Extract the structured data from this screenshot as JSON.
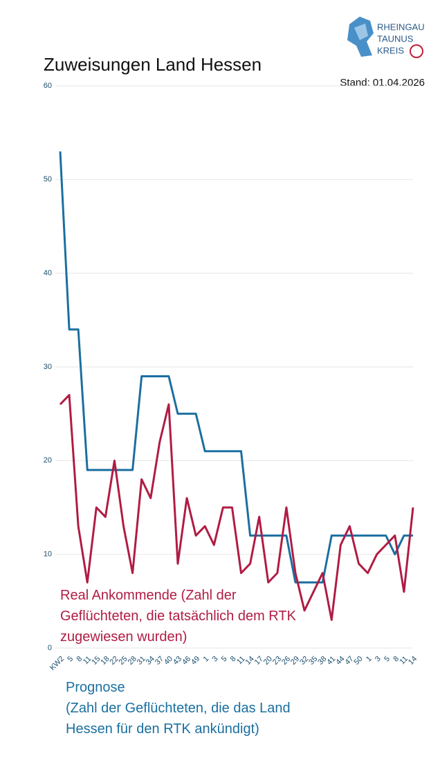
{
  "logo": {
    "lines": [
      "RHEINGAU",
      "TAUNUS",
      "KREIS"
    ]
  },
  "chart_data": {
    "type": "line",
    "title": "Zuweisungen Land Hessen",
    "subtitle": "Stand: 01.04.2026",
    "categories": [
      "KW2",
      "5",
      "8",
      "11",
      "15",
      "18",
      "22",
      "25",
      "28",
      "31",
      "34",
      "37",
      "40",
      "43",
      "46",
      "49",
      "1",
      "3",
      "5",
      "8",
      "11",
      "14",
      "17",
      "20",
      "23",
      "26",
      "29",
      "32",
      "35",
      "38",
      "41",
      "44",
      "47",
      "50",
      "1",
      "3",
      "5",
      "8",
      "11",
      "14"
    ],
    "series": [
      {
        "name": "Prognose\n(Zahl der Geflüchteten, die das Land Hessen für den RTK ankündigt)",
        "color": "#1a6fa0",
        "values": [
          53,
          34,
          34,
          19,
          19,
          19,
          19,
          19,
          19,
          29,
          29,
          29,
          29,
          25,
          25,
          25,
          21,
          21,
          21,
          21,
          21,
          12,
          12,
          12,
          12,
          12,
          7,
          7,
          7,
          7,
          12,
          12,
          12,
          12,
          12,
          12,
          12,
          10,
          12,
          12
        ]
      },
      {
        "name": "Real Ankommende (Zahl der Geflüchteten, die tatsächlich dem RTK zugewiesen wurden)",
        "color": "#b01c43",
        "values": [
          26,
          27,
          13,
          7,
          15,
          14,
          20,
          13,
          8,
          18,
          16,
          22,
          26,
          9,
          16,
          12,
          13,
          11,
          15,
          15,
          8,
          9,
          14,
          7,
          8,
          15,
          8,
          4,
          6,
          8,
          3,
          11,
          13,
          9,
          8,
          10,
          11,
          12,
          6,
          15
        ]
      }
    ],
    "ylim": [
      0,
      60
    ],
    "yticks": [
      0,
      10,
      20,
      30,
      40,
      50,
      60
    ],
    "grid": true
  }
}
